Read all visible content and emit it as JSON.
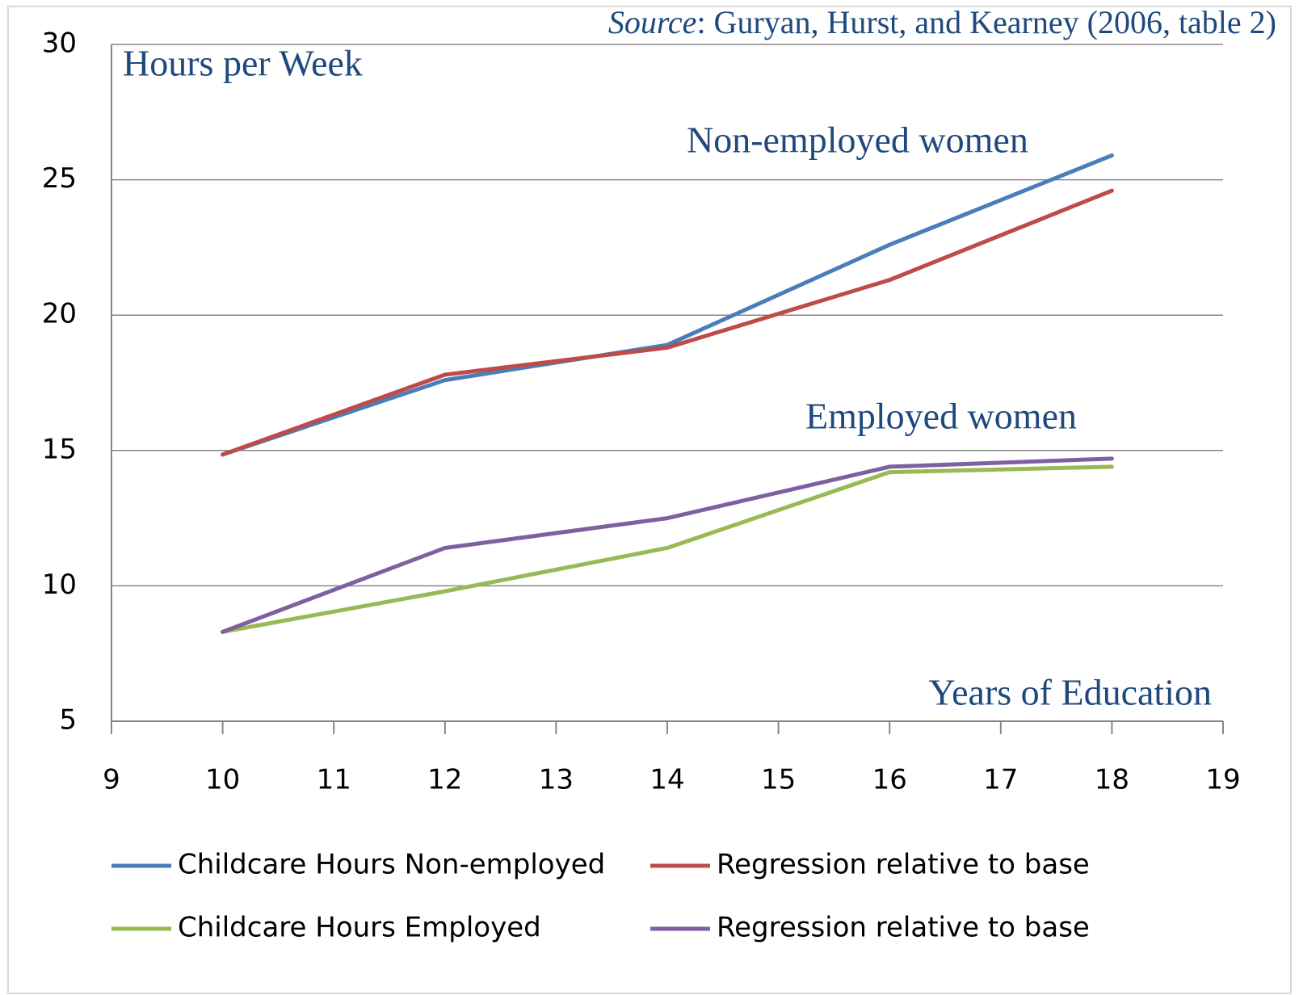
{
  "chart_data": {
    "type": "line",
    "source_label": "Source",
    "source_text": ": Guryan, Hurst, and Kearney (2006, table 2)",
    "y_label": "Hours per Week",
    "x_label": "Years of Education",
    "annotations": [
      "Non-employed women",
      "Employed women"
    ],
    "x": [
      10,
      12,
      14,
      16,
      18
    ],
    "series": [
      {
        "name": "Childcare Hours Non-employed",
        "color": "#4a7ebb",
        "values": [
          14.85,
          17.6,
          18.9,
          22.6,
          25.9
        ]
      },
      {
        "name": "Regression relative to base",
        "color": "#be4b48",
        "values": [
          14.85,
          17.8,
          18.8,
          21.3,
          24.6
        ]
      },
      {
        "name": "Childcare Hours Employed",
        "color": "#98b954",
        "values": [
          8.3,
          9.8,
          11.4,
          14.2,
          14.4
        ]
      },
      {
        "name": "Regression relative to base",
        "color": "#7d60a0",
        "values": [
          8.3,
          11.4,
          12.5,
          14.4,
          14.7
        ]
      }
    ],
    "xlim": [
      9,
      19
    ],
    "xticks": [
      9,
      10,
      11,
      12,
      13,
      14,
      15,
      16,
      17,
      18,
      19
    ],
    "ylim": [
      5,
      30
    ],
    "yticks": [
      5,
      10,
      15,
      20,
      25,
      30
    ],
    "grid": true
  }
}
